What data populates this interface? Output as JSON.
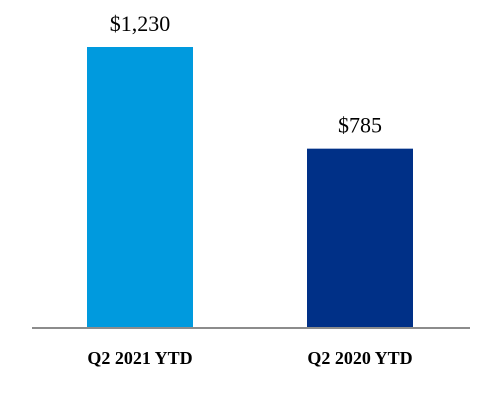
{
  "chart_data": {
    "type": "bar",
    "title": "",
    "xlabel": "",
    "ylabel": "",
    "categories": [
      "Q2 2021 YTD",
      "Q2 2020 YTD"
    ],
    "values": [
      1230,
      785
    ],
    "value_labels": [
      "$1,230",
      "$785"
    ],
    "bar_colors": [
      "#009ADE",
      "#003087"
    ],
    "axis_color": "#8C8C8C",
    "ylim": [
      0,
      1230
    ],
    "grid": false,
    "legend": "none"
  }
}
